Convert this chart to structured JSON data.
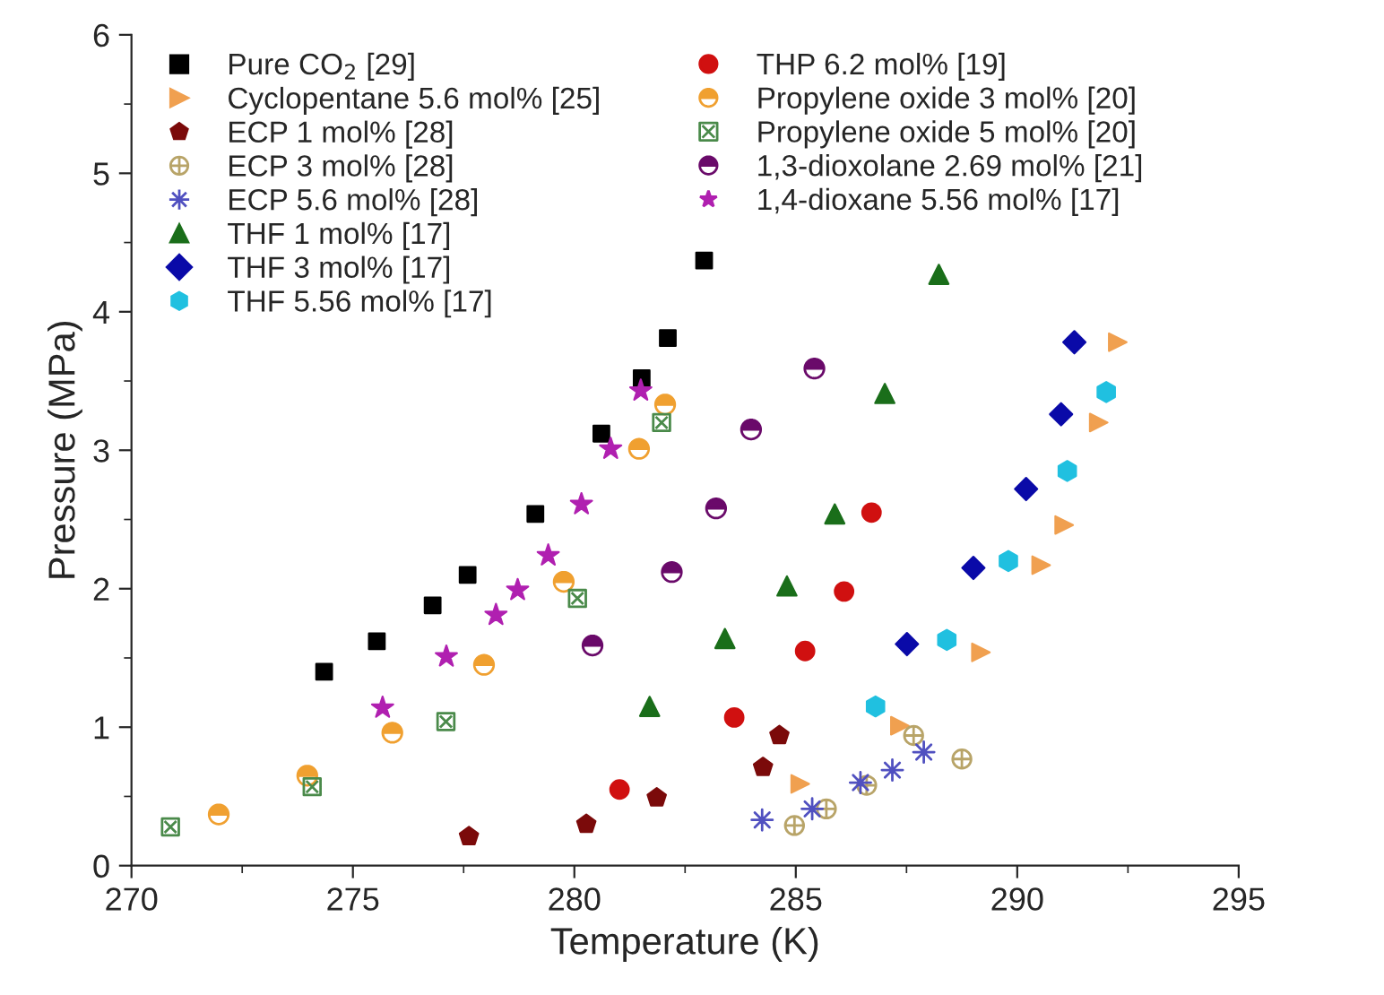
{
  "chart_data": {
    "type": "scatter",
    "xlabel": "Temperature (K)",
    "ylabel": "Pressure (MPa)",
    "xlim": [
      270,
      295
    ],
    "xticks": [
      270,
      275,
      280,
      285,
      290,
      295
    ],
    "ylim": [
      0,
      6
    ],
    "yticks": [
      0,
      1,
      2,
      3,
      4,
      5,
      6
    ],
    "grid": false,
    "legend": "top",
    "series": [
      {
        "name": "Pure CO$_{2}$ [29]",
        "color": "#000000",
        "x": [
          274.35,
          275.54,
          276.8,
          277.59,
          279.12,
          280.61,
          281.52,
          282.11,
          282.93
        ],
        "values": [
          1.4,
          1.62,
          1.88,
          2.1,
          2.54,
          3.12,
          3.52,
          3.81,
          4.37
        ]
      },
      {
        "name": "Cyclopentane 5.6 mol% [25]",
        "color": "#f0a050",
        "x": [
          285.1,
          287.35,
          289.18,
          290.54,
          291.06,
          291.84,
          292.27
        ],
        "values": [
          0.59,
          1.01,
          1.54,
          2.17,
          2.46,
          3.2,
          3.78
        ]
      },
      {
        "name": "ECP 1 mol% [28]",
        "color": "#7b0a0a",
        "x": [
          277.62,
          280.27,
          281.86,
          284.26,
          284.63
        ],
        "values": [
          0.21,
          0.3,
          0.49,
          0.71,
          0.94
        ]
      },
      {
        "name": "ECP 3 mol% [28]",
        "color": "#b8a468",
        "x": [
          284.97,
          285.69,
          286.6,
          287.66,
          288.75
        ],
        "values": [
          0.29,
          0.41,
          0.58,
          0.94,
          0.77
        ]
      },
      {
        "name": "ECP 5.6 mol% [28]",
        "color": "#5050c0",
        "x": [
          284.24,
          285.37,
          286.46,
          287.18,
          287.89
        ],
        "values": [
          0.33,
          0.41,
          0.6,
          0.69,
          0.82
        ]
      },
      {
        "name": "THF 1 mol% [17]",
        "color": "#1a6e1a",
        "x": [
          281.7,
          283.4,
          284.8,
          285.88,
          287.01,
          288.23
        ],
        "values": [
          1.15,
          1.64,
          2.02,
          2.54,
          3.41,
          4.27
        ]
      },
      {
        "name": "THF 3 mol% [17]",
        "color": "#0a0aa8",
        "x": [
          287.51,
          289.01,
          290.2,
          290.99,
          291.29
        ],
        "values": [
          1.6,
          2.15,
          2.72,
          3.26,
          3.78
        ]
      },
      {
        "name": "THF 5.56 mol% [17]",
        "color": "#20c0e0",
        "x": [
          286.8,
          288.41,
          289.8,
          291.13,
          292.01
        ],
        "values": [
          1.15,
          1.63,
          2.2,
          2.85,
          3.42
        ]
      },
      {
        "name": "THP 6.2 mol% [19]",
        "color": "#d01010",
        "x": [
          281.02,
          283.61,
          285.21,
          286.09,
          286.71
        ],
        "values": [
          0.55,
          1.07,
          1.55,
          1.98,
          2.55
        ]
      },
      {
        "name": "Propylene oxide 3 mol% [20]",
        "color": "#f0a030",
        "x": [
          271.97,
          273.97,
          275.89,
          277.96,
          279.76,
          281.46,
          282.05
        ],
        "values": [
          0.37,
          0.65,
          0.96,
          1.45,
          2.05,
          3.01,
          3.33
        ]
      },
      {
        "name": "Propylene oxide 5 mol% [20]",
        "color": "#4a8a4a",
        "x": [
          270.88,
          274.08,
          277.1,
          280.07,
          281.97
        ],
        "values": [
          0.28,
          0.57,
          1.04,
          1.93,
          3.2
        ]
      },
      {
        "name": "1,3-dioxolane 2.69 mol% [21]",
        "color": "#6a0a6a",
        "x": [
          280.41,
          282.2,
          283.2,
          283.99,
          285.42
        ],
        "values": [
          1.59,
          2.12,
          2.58,
          3.15,
          3.59
        ]
      },
      {
        "name": "1,4-dioxane 5.56 mol% [17]",
        "color": "#b020b0",
        "x": [
          275.67,
          277.11,
          278.23,
          278.72,
          279.41,
          280.16,
          280.82,
          281.5
        ],
        "values": [
          1.14,
          1.51,
          1.81,
          1.99,
          2.24,
          2.61,
          3.01,
          3.43
        ]
      }
    ]
  }
}
